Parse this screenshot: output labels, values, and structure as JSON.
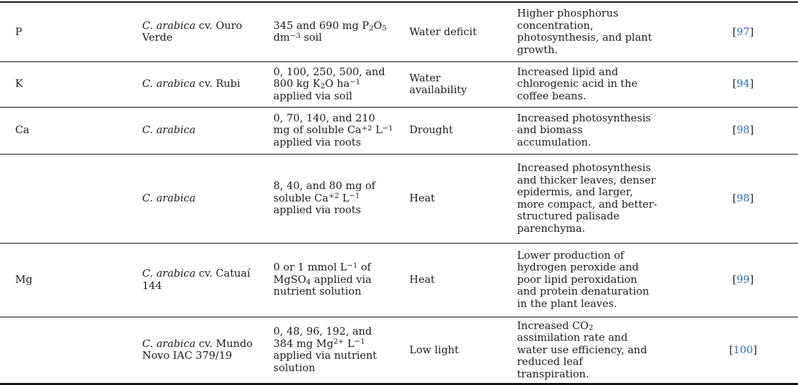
{
  "colors": {
    "text": "#1c1c1c",
    "rule": "#111111",
    "link": "#2e6fb5"
  },
  "table": {
    "ref_open": "[",
    "ref_close": "]",
    "rows": [
      {
        "element": "P",
        "cultivar": [
          {
            "t": "C. arabica",
            "i": true
          },
          {
            "t": " cv. Ouro Verde"
          }
        ],
        "treatment": [
          {
            "t": "345 and 690 mg P"
          },
          {
            "t": "2",
            "sub": true
          },
          {
            "t": "O"
          },
          {
            "t": "5",
            "sub": true
          },
          {
            "t": " dm"
          },
          {
            "t": "−3",
            "sup": true
          },
          {
            "t": " soil"
          }
        ],
        "condition": "Water deficit",
        "effect": "Higher phosphorus concentration, photosynthesis, and plant growth.",
        "ref": "97"
      },
      {
        "element": "K",
        "cultivar": [
          {
            "t": "C. arabica",
            "i": true
          },
          {
            "t": " cv. Rubi"
          }
        ],
        "treatment": [
          {
            "t": "0, 100, 250, 500, and 800 kg K"
          },
          {
            "t": "2",
            "sub": true
          },
          {
            "t": "O ha"
          },
          {
            "t": "−1",
            "sup": true
          },
          {
            "t": " applied via soil"
          }
        ],
        "condition": "Water availability",
        "effect": "Increased lipid and chlorogenic acid in the coffee beans.",
        "ref": "94"
      },
      {
        "element": "Ca",
        "cultivar": [
          {
            "t": "C. arabica",
            "i": true
          }
        ],
        "treatment": [
          {
            "t": "0, 70, 140, and 210 mg of soluble Ca"
          },
          {
            "t": "+2",
            "sup": true
          },
          {
            "t": " L"
          },
          {
            "t": "−1",
            "sup": true
          },
          {
            "t": " applied via roots"
          }
        ],
        "condition": "Drought",
        "effect": "Increased photosynthesis and biomass accumulation.",
        "ref": "98"
      },
      {
        "element": "",
        "cultivar": [
          {
            "t": "C. arabica",
            "i": true
          }
        ],
        "treatment": [
          {
            "t": "8, 40, and 80 mg of soluble Ca"
          },
          {
            "t": "+2",
            "sup": true
          },
          {
            "t": " L"
          },
          {
            "t": "−1",
            "sup": true
          },
          {
            "t": " applied via roots"
          }
        ],
        "condition": "Heat",
        "effect": "Increased photosynthesis and thicker leaves, denser epidermis, and larger, more compact, and better-structured palisade parenchyma.",
        "ref": "98"
      },
      {
        "element": "Mg",
        "cultivar": [
          {
            "t": "C. arabica",
            "i": true
          },
          {
            "t": " cv. Catuaí 144"
          }
        ],
        "treatment": [
          {
            "t": "0 or 1 mmol L"
          },
          {
            "t": "−1",
            "sup": true
          },
          {
            "t": " of MgSO"
          },
          {
            "t": "4",
            "sub": true
          },
          {
            "t": " applied via nutrient solution"
          }
        ],
        "condition": "Heat",
        "effect": "Lower production of hydrogen peroxide and poor lipid peroxidation and protein denaturation in the plant leaves.",
        "ref": "99"
      },
      {
        "element": "",
        "cultivar": [
          {
            "t": "C. arabica",
            "i": true
          },
          {
            "t": " cv. Mundo Novo IAC 379/19"
          }
        ],
        "treatment": [
          {
            "t": "0, 48, 96, 192, and 384 mg Mg"
          },
          {
            "t": "2+",
            "sup": true
          },
          {
            "t": " L"
          },
          {
            "t": "−1",
            "sup": true
          },
          {
            "t": " applied via nutrient solution"
          }
        ],
        "condition": "Low light",
        "effect": [
          {
            "t": "Increased CO"
          },
          {
            "t": "2",
            "sub": true
          },
          {
            "t": " assimilation rate and water use efficiency, and reduced leaf transpiration."
          }
        ],
        "ref": "100"
      }
    ]
  }
}
